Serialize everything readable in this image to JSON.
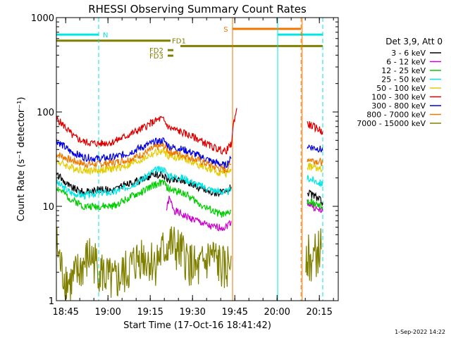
{
  "chart_data": {
    "type": "line",
    "title": "RHESSI Observing Summary Count Rates",
    "xlabel": "Start Time (17-Oct-16 18:41:42)",
    "ylabel": "Count Rate (s⁻¹ detector⁻¹)",
    "yscale": "log",
    "ylim": [
      1,
      1000
    ],
    "x_unit": "minutes after 18:41:42",
    "xlim": [
      0,
      100
    ],
    "x_ticks": [
      {
        "label": "18:45",
        "x": 3.3
      },
      {
        "label": "19:00",
        "x": 18.3
      },
      {
        "label": "19:15",
        "x": 33.3
      },
      {
        "label": "19:30",
        "x": 48.3
      },
      {
        "label": "19:45",
        "x": 63.3
      },
      {
        "label": "20:00",
        "x": 78.3
      },
      {
        "label": "20:15",
        "x": 93.3
      }
    ],
    "y_ticks": [
      {
        "label": "1",
        "y": 1
      },
      {
        "label": "10",
        "y": 10
      },
      {
        "label": "100",
        "y": 100
      },
      {
        "label": "1000",
        "y": 1000
      }
    ],
    "legend_title": "Det 3,9, Att 0",
    "legend_position": "right",
    "grid": false,
    "series": [
      {
        "name": "3 - 6 keV",
        "color": "#000000",
        "segments": [
          {
            "x": [
              0,
              5,
              10,
              15,
              20,
              25,
              30,
              35,
              38,
              40,
              45,
              50,
              55,
              60,
              62
            ],
            "y": [
              22,
              16,
              14,
              15,
              15,
              17,
              19,
              22,
              21,
              19,
              19,
              16,
              14,
              14,
              16
            ]
          },
          {
            "x": [
              89,
              91,
              93,
              94.5
            ],
            "y": [
              14,
              13,
              12,
              11
            ]
          }
        ]
      },
      {
        "name": "6 - 12 keV",
        "color": "#cc00cc",
        "segments": [
          {
            "x": [
              39,
              40,
              42,
              45,
              50,
              55,
              60,
              62
            ],
            "y": [
              9,
              12,
              9,
              8,
              7,
              6,
              6,
              7
            ]
          },
          {
            "x": [
              89,
              91,
              93,
              94.5
            ],
            "y": [
              11,
              10,
              9,
              9
            ]
          }
        ]
      },
      {
        "name": "12 - 25 keV",
        "color": "#00cc00",
        "segments": [
          {
            "x": [
              0,
              5,
              10,
              15,
              20,
              25,
              30,
              35,
              38,
              40,
              45,
              50,
              55,
              60,
              62
            ],
            "y": [
              16,
              12,
              10,
              10,
              10,
              12,
              14,
              17,
              18,
              15,
              14,
              11,
              9,
              8,
              9
            ]
          },
          {
            "x": [
              89,
              91,
              93,
              94.5
            ],
            "y": [
              11,
              11,
              10,
              10
            ]
          }
        ]
      },
      {
        "name": "25 - 50 keV",
        "color": "#00e5e5",
        "segments": [
          {
            "x": [
              0,
              5,
              10,
              15,
              20,
              25,
              30,
              35,
              38,
              40,
              45,
              50,
              55,
              60,
              62
            ],
            "y": [
              18,
              14,
              13,
              14,
              14,
              16,
              19,
              24,
              25,
              21,
              20,
              17,
              15,
              14,
              15
            ]
          },
          {
            "x": [
              89,
              91,
              93,
              94.5
            ],
            "y": [
              20,
              19,
              18,
              17
            ]
          }
        ]
      },
      {
        "name": "50 - 100 keV",
        "color": "#e5cc00",
        "segments": [
          {
            "x": [
              0,
              5,
              10,
              15,
              20,
              25,
              30,
              35,
              38,
              40,
              45,
              50,
              55,
              60,
              62
            ],
            "y": [
              30,
              26,
              24,
              24,
              25,
              27,
              31,
              37,
              38,
              34,
              32,
              28,
              24,
              22,
              25
            ]
          },
          {
            "x": [
              89,
              91,
              93,
              94.5
            ],
            "y": [
              27,
              26,
              25,
              24
            ]
          }
        ]
      },
      {
        "name": "100 - 300 keV",
        "color": "#dd0000",
        "segments": [
          {
            "x": [
              0,
              3,
              6,
              10,
              15,
              20,
              25,
              30,
              35,
              37,
              38,
              40,
              42,
              45,
              50,
              55,
              60,
              62,
              63,
              64
            ],
            "y": [
              85,
              70,
              55,
              48,
              46,
              48,
              56,
              66,
              80,
              85,
              82,
              68,
              65,
              60,
              52,
              43,
              38,
              45,
              80,
              110
            ]
          },
          {
            "x": [
              89,
              91,
              93,
              94.5
            ],
            "y": [
              75,
              70,
              66,
              62
            ]
          }
        ]
      },
      {
        "name": "300 - 800 keV",
        "color": "#0000dd",
        "segments": [
          {
            "x": [
              0,
              5,
              10,
              15,
              20,
              25,
              30,
              35,
              38,
              40,
              45,
              50,
              55,
              60,
              62
            ],
            "y": [
              50,
              38,
              33,
              32,
              33,
              36,
              42,
              48,
              50,
              43,
              40,
              35,
              30,
              27,
              32
            ]
          },
          {
            "x": [
              89,
              91,
              93,
              94.5
            ],
            "y": [
              44,
              42,
              41,
              39
            ]
          }
        ]
      },
      {
        "name": "800 - 7000 keV",
        "color": "#ee7700",
        "segments": [
          {
            "x": [
              0,
              5,
              10,
              15,
              20,
              25,
              30,
              35,
              38,
              40,
              45,
              50,
              55,
              60,
              62
            ],
            "y": [
              36,
              31,
              28,
              28,
              29,
              31,
              35,
              42,
              44,
              38,
              35,
              31,
              27,
              24,
              28
            ]
          },
          {
            "x": [
              89,
              91,
              93,
              94.5
            ],
            "y": [
              32,
              31,
              30,
              29
            ]
          }
        ]
      },
      {
        "name": "7000 - 15000 keV",
        "color": "#808000",
        "segments": [
          {
            "x": [
              0,
              2,
              5,
              8,
              12,
              16,
              20,
              25,
              30,
              35,
              40,
              45,
              50,
              55,
              60,
              62
            ],
            "y": [
              4,
              2,
              1.5,
              2,
              3,
              2,
              1.5,
              2,
              3,
              2.5,
              4,
              3,
              2,
              3,
              2,
              3
            ]
          },
          {
            "x": [
              88.5,
              90,
              92,
              94
            ],
            "y": [
              3.5,
              2.5,
              3,
              3.5
            ]
          }
        ]
      }
    ],
    "vertical_lines": [
      {
        "x": 0,
        "color": "#00e5e5",
        "style": "solid"
      },
      {
        "x": 15,
        "color": "#00e5e5",
        "style": "dashed"
      },
      {
        "x": 62.5,
        "color": "#ee7700",
        "style": "solid"
      },
      {
        "x": 78.5,
        "color": "#00e5e5",
        "style": "solid"
      },
      {
        "x": 86.8,
        "color": "#ee7700",
        "style": "dashed"
      },
      {
        "x": 87.2,
        "color": "#ee7700",
        "style": "solid"
      },
      {
        "x": 94.5,
        "color": "#00e5e5",
        "style": "dashed"
      }
    ],
    "flag_bars": [
      {
        "label": "N",
        "color": "#00e5e5",
        "y": 660,
        "segments": [
          [
            0,
            15
          ],
          [
            78.5,
            94.5
          ]
        ],
        "label_x": 16.5
      },
      {
        "label": "S",
        "color": "#ee7700",
        "y": 760,
        "segments": [
          [
            62.5,
            86.8
          ]
        ],
        "label_x": 59.3
      },
      {
        "label": "FD1",
        "color": "#808000",
        "y": 570,
        "segments": [
          [
            0,
            40.5
          ]
        ],
        "label_x": 41
      },
      {
        "label": "",
        "color": "#808000",
        "y": 500,
        "segments": [
          [
            44,
            94.5
          ]
        ],
        "label_x": null
      },
      {
        "label": "FD2",
        "color": "#808000",
        "y": 452,
        "segments": [
          [
            39.5,
            41.5
          ]
        ],
        "label_x": 33
      },
      {
        "label": "FD3",
        "color": "#808000",
        "y": 395,
        "segments": [
          [
            39.5,
            41.5
          ]
        ],
        "label_x": 33
      }
    ],
    "footer_date": "1-Sep-2022 14:22"
  }
}
